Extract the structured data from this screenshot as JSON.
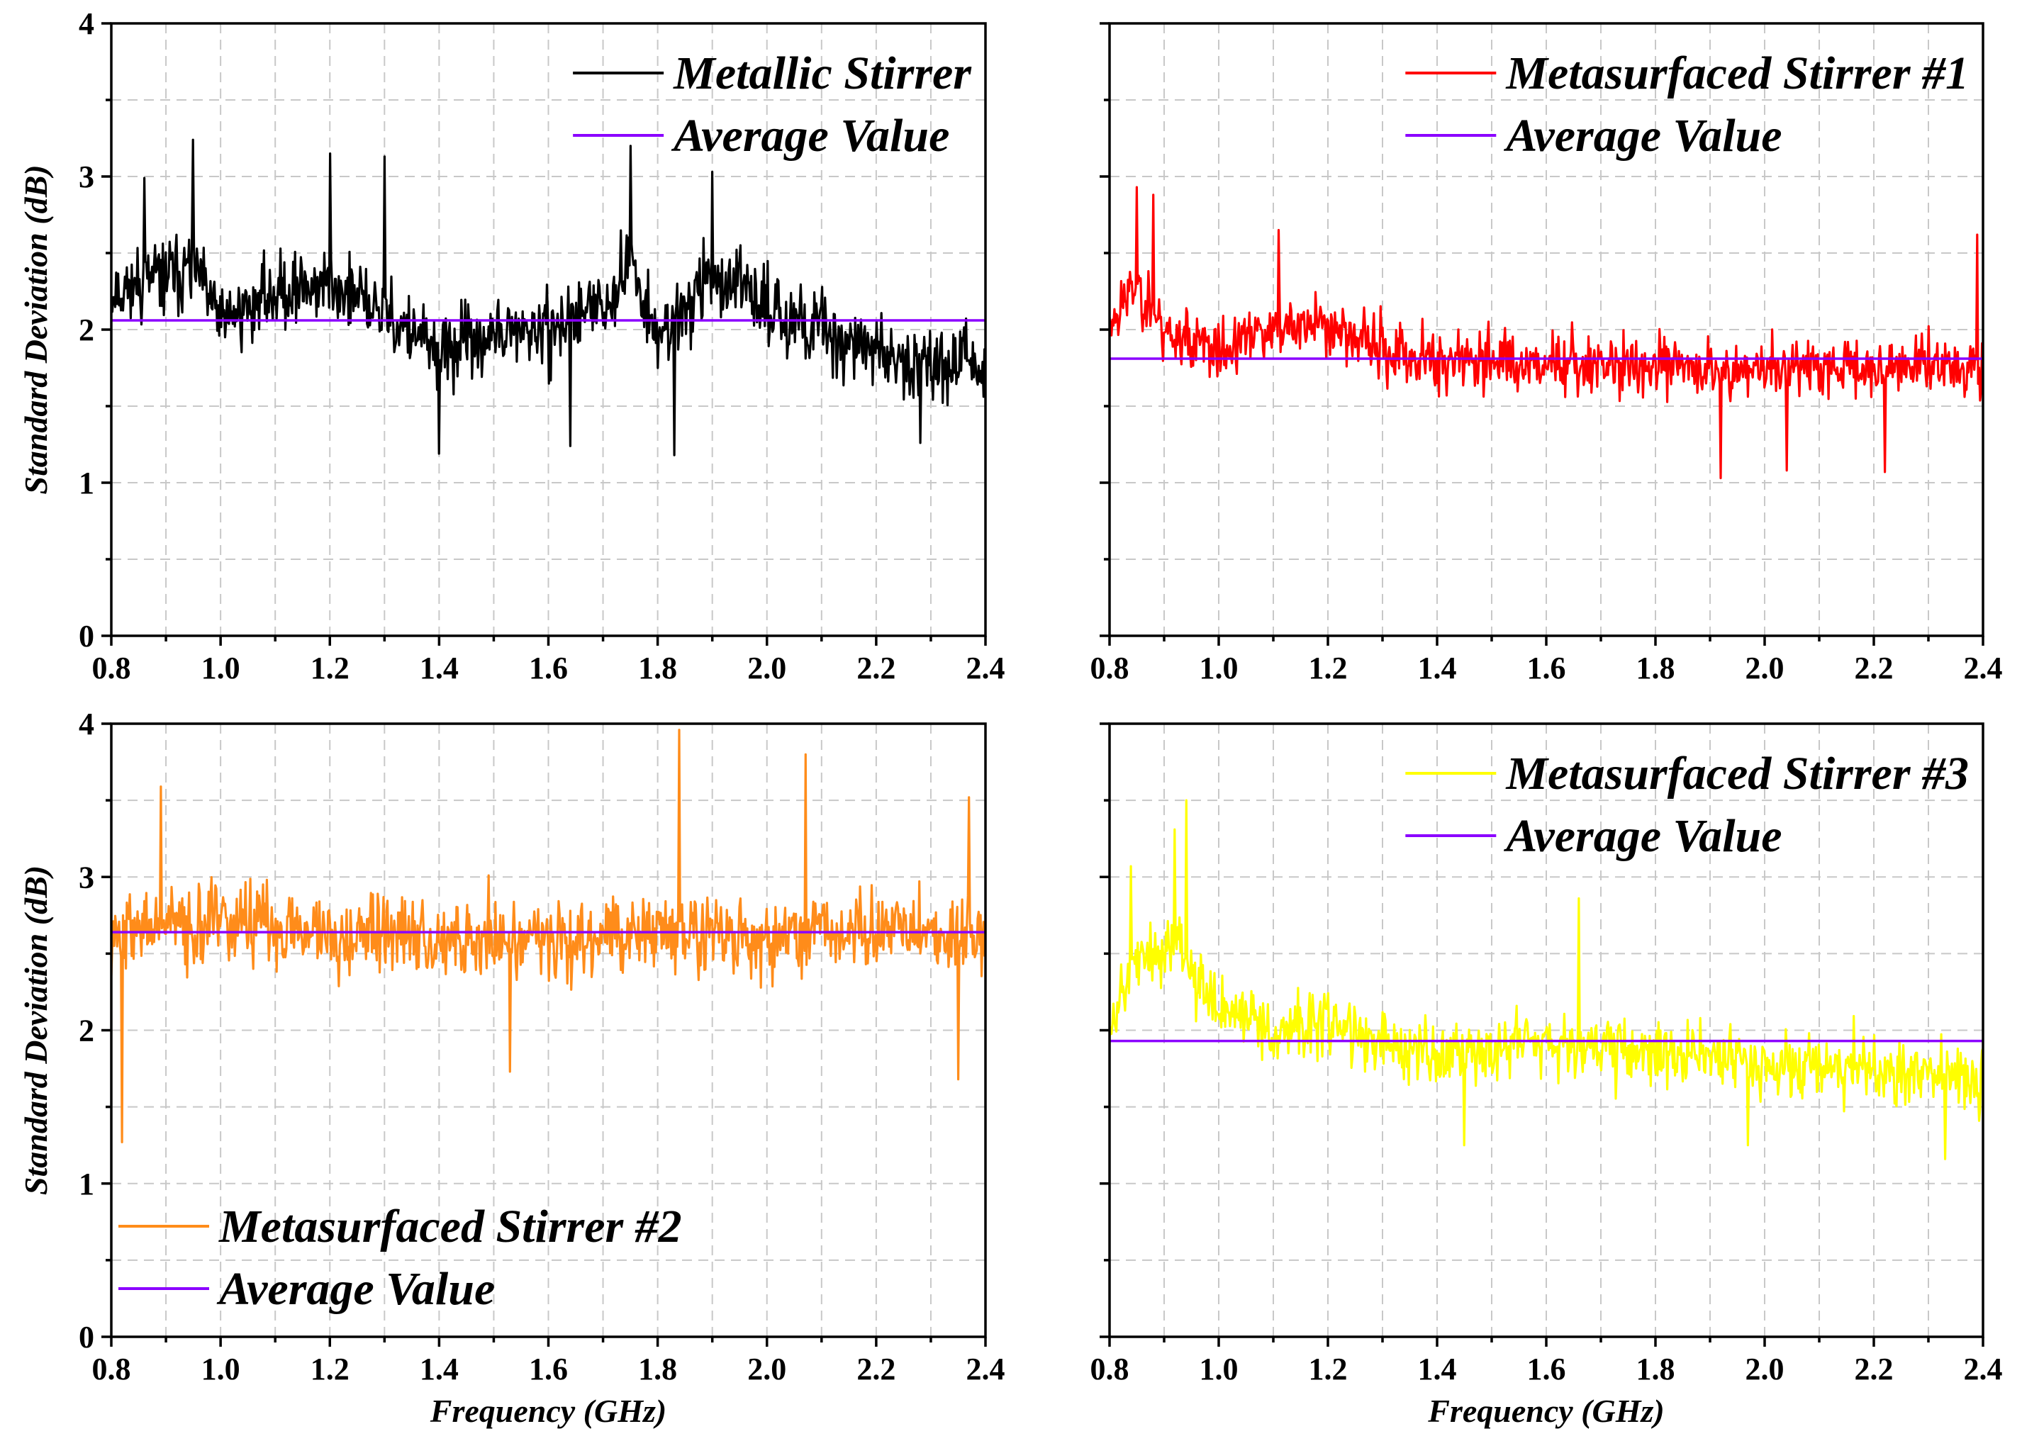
{
  "chart_data": [
    {
      "type": "line",
      "panel": "top-left",
      "xlabel": "",
      "ylabel": "Standard Deviation (dB)",
      "xlim": [
        0.8,
        2.4
      ],
      "ylim": [
        0,
        4
      ],
      "xticks": [
        "0.8",
        "1.0",
        "1.2",
        "1.4",
        "1.6",
        "1.8",
        "2.0",
        "2.2",
        "2.4"
      ],
      "yticks": [
        "0",
        "1",
        "2",
        "3",
        "4"
      ],
      "grid": true,
      "legend_position": "top-right",
      "series": [
        {
          "name": "Metallic Stirrer",
          "color": "#000000",
          "kind": "noisy-measurement",
          "noise_amplitude": 0.45,
          "envelope": {
            "x": [
              0.8,
              0.9,
              0.95,
              1.0,
              1.1,
              1.2,
              1.3,
              1.4,
              1.5,
              1.6,
              1.7,
              1.75,
              1.8,
              1.9,
              2.0,
              2.1,
              2.2,
              2.3,
              2.4
            ],
            "y": [
              2.25,
              2.35,
              2.4,
              2.05,
              2.25,
              2.3,
              2.1,
              1.85,
              1.95,
              2.0,
              2.15,
              2.45,
              1.95,
              2.35,
              2.15,
              2.0,
              1.85,
              1.8,
              1.75
            ]
          },
          "peaks": [
            {
              "x": 0.95,
              "y": 3.24
            },
            {
              "x": 1.2,
              "y": 3.15
            },
            {
              "x": 1.3,
              "y": 3.13
            },
            {
              "x": 1.75,
              "y": 3.2
            },
            {
              "x": 1.9,
              "y": 3.03
            },
            {
              "x": 0.86,
              "y": 2.99
            }
          ],
          "troughs": [
            {
              "x": 1.4,
              "y": 1.19
            },
            {
              "x": 1.83,
              "y": 1.18
            },
            {
              "x": 2.28,
              "y": 1.26
            },
            {
              "x": 1.64,
              "y": 1.24
            }
          ],
          "samples": 900,
          "seed": 11
        },
        {
          "name": "Average Value",
          "color": "#8b00ff",
          "kind": "constant",
          "value": 2.06
        }
      ]
    },
    {
      "type": "line",
      "panel": "top-right",
      "xlabel": "",
      "ylabel": "",
      "xlim": [
        0.8,
        2.4
      ],
      "ylim": [
        0,
        4
      ],
      "xticks": [
        "0.8",
        "1.0",
        "1.2",
        "1.4",
        "1.6",
        "1.8",
        "2.0",
        "2.2",
        "2.4"
      ],
      "yticks": [],
      "grid": true,
      "legend_position": "top-right",
      "series": [
        {
          "name": "Metasurfaced Stirrer #1",
          "color": "#ff0000",
          "kind": "noisy-measurement",
          "noise_amplitude": 0.38,
          "envelope": {
            "x": [
              0.8,
              0.85,
              0.9,
              1.0,
              1.1,
              1.2,
              1.3,
              1.4,
              1.6,
              1.8,
              2.0,
              2.2,
              2.4
            ],
            "y": [
              2.05,
              2.3,
              2.0,
              1.85,
              2.0,
              2.05,
              1.85,
              1.8,
              1.8,
              1.75,
              1.75,
              1.75,
              1.8
            ]
          },
          "peaks": [
            {
              "x": 0.85,
              "y": 2.93
            },
            {
              "x": 0.88,
              "y": 2.88
            },
            {
              "x": 1.11,
              "y": 2.65
            },
            {
              "x": 2.39,
              "y": 2.62
            }
          ],
          "troughs": [
            {
              "x": 1.92,
              "y": 1.03
            },
            {
              "x": 2.22,
              "y": 1.07
            },
            {
              "x": 2.04,
              "y": 1.08
            }
          ],
          "samples": 900,
          "seed": 23
        },
        {
          "name": "Average Value",
          "color": "#8b00ff",
          "kind": "constant",
          "value": 1.81
        }
      ]
    },
    {
      "type": "line",
      "panel": "bottom-left",
      "xlabel": "Frequency (GHz)",
      "ylabel": "Standard Deviation (dB)",
      "xlim": [
        0.8,
        2.4
      ],
      "ylim": [
        0,
        4
      ],
      "xticks": [
        "0.8",
        "1.0",
        "1.2",
        "1.4",
        "1.6",
        "1.8",
        "2.0",
        "2.2",
        "2.4"
      ],
      "yticks": [
        "0",
        "1",
        "2",
        "3",
        "4"
      ],
      "grid": true,
      "legend_position": "bottom-left",
      "series": [
        {
          "name": "Metasurfaced Stirrer #2",
          "color": "#ff8c1a",
          "kind": "noisy-measurement",
          "noise_amplitude": 0.5,
          "envelope": {
            "x": [
              0.8,
              1.0,
              1.2,
              1.4,
              1.6,
              1.8,
              2.0,
              2.2,
              2.4
            ],
            "y": [
              2.65,
              2.7,
              2.65,
              2.6,
              2.6,
              2.65,
              2.6,
              2.65,
              2.6
            ]
          },
          "peaks": [
            {
              "x": 1.84,
              "y": 3.96
            },
            {
              "x": 2.07,
              "y": 3.8
            },
            {
              "x": 0.89,
              "y": 3.59
            },
            {
              "x": 2.37,
              "y": 3.52
            }
          ],
          "troughs": [
            {
              "x": 0.82,
              "y": 1.27
            },
            {
              "x": 2.35,
              "y": 1.68
            },
            {
              "x": 1.53,
              "y": 1.73
            }
          ],
          "samples": 900,
          "seed": 37
        },
        {
          "name": "Average Value",
          "color": "#8b00ff",
          "kind": "constant",
          "value": 2.64
        }
      ]
    },
    {
      "type": "line",
      "panel": "bottom-right",
      "xlabel": "Frequency (GHz)",
      "ylabel": "",
      "xlim": [
        0.8,
        2.4
      ],
      "ylim": [
        0,
        4
      ],
      "xticks": [
        "0.8",
        "1.0",
        "1.2",
        "1.4",
        "1.6",
        "1.8",
        "2.0",
        "2.2",
        "2.4"
      ],
      "yticks": [],
      "grid": true,
      "legend_position": "top-right",
      "series": [
        {
          "name": "Metasurfaced Stirrer #3",
          "color": "#ffff00",
          "kind": "noisy-measurement",
          "noise_amplitude": 0.4,
          "envelope": {
            "x": [
              0.8,
              0.85,
              0.93,
              1.0,
              1.1,
              1.2,
              1.3,
              1.4,
              1.6,
              1.8,
              2.0,
              2.2,
              2.4
            ],
            "y": [
              2.1,
              2.45,
              2.55,
              2.15,
              2.0,
              2.05,
              1.9,
              1.85,
              1.95,
              1.85,
              1.8,
              1.75,
              1.65
            ]
          },
          "peaks": [
            {
              "x": 0.94,
              "y": 3.5
            },
            {
              "x": 0.92,
              "y": 3.31
            },
            {
              "x": 0.84,
              "y": 3.07
            },
            {
              "x": 1.66,
              "y": 2.86
            }
          ],
          "troughs": [
            {
              "x": 2.33,
              "y": 1.16
            },
            {
              "x": 1.97,
              "y": 1.25
            },
            {
              "x": 1.45,
              "y": 1.25
            }
          ],
          "samples": 900,
          "seed": 53
        },
        {
          "name": "Average Value",
          "color": "#8b00ff",
          "kind": "constant",
          "value": 1.93
        }
      ]
    }
  ]
}
